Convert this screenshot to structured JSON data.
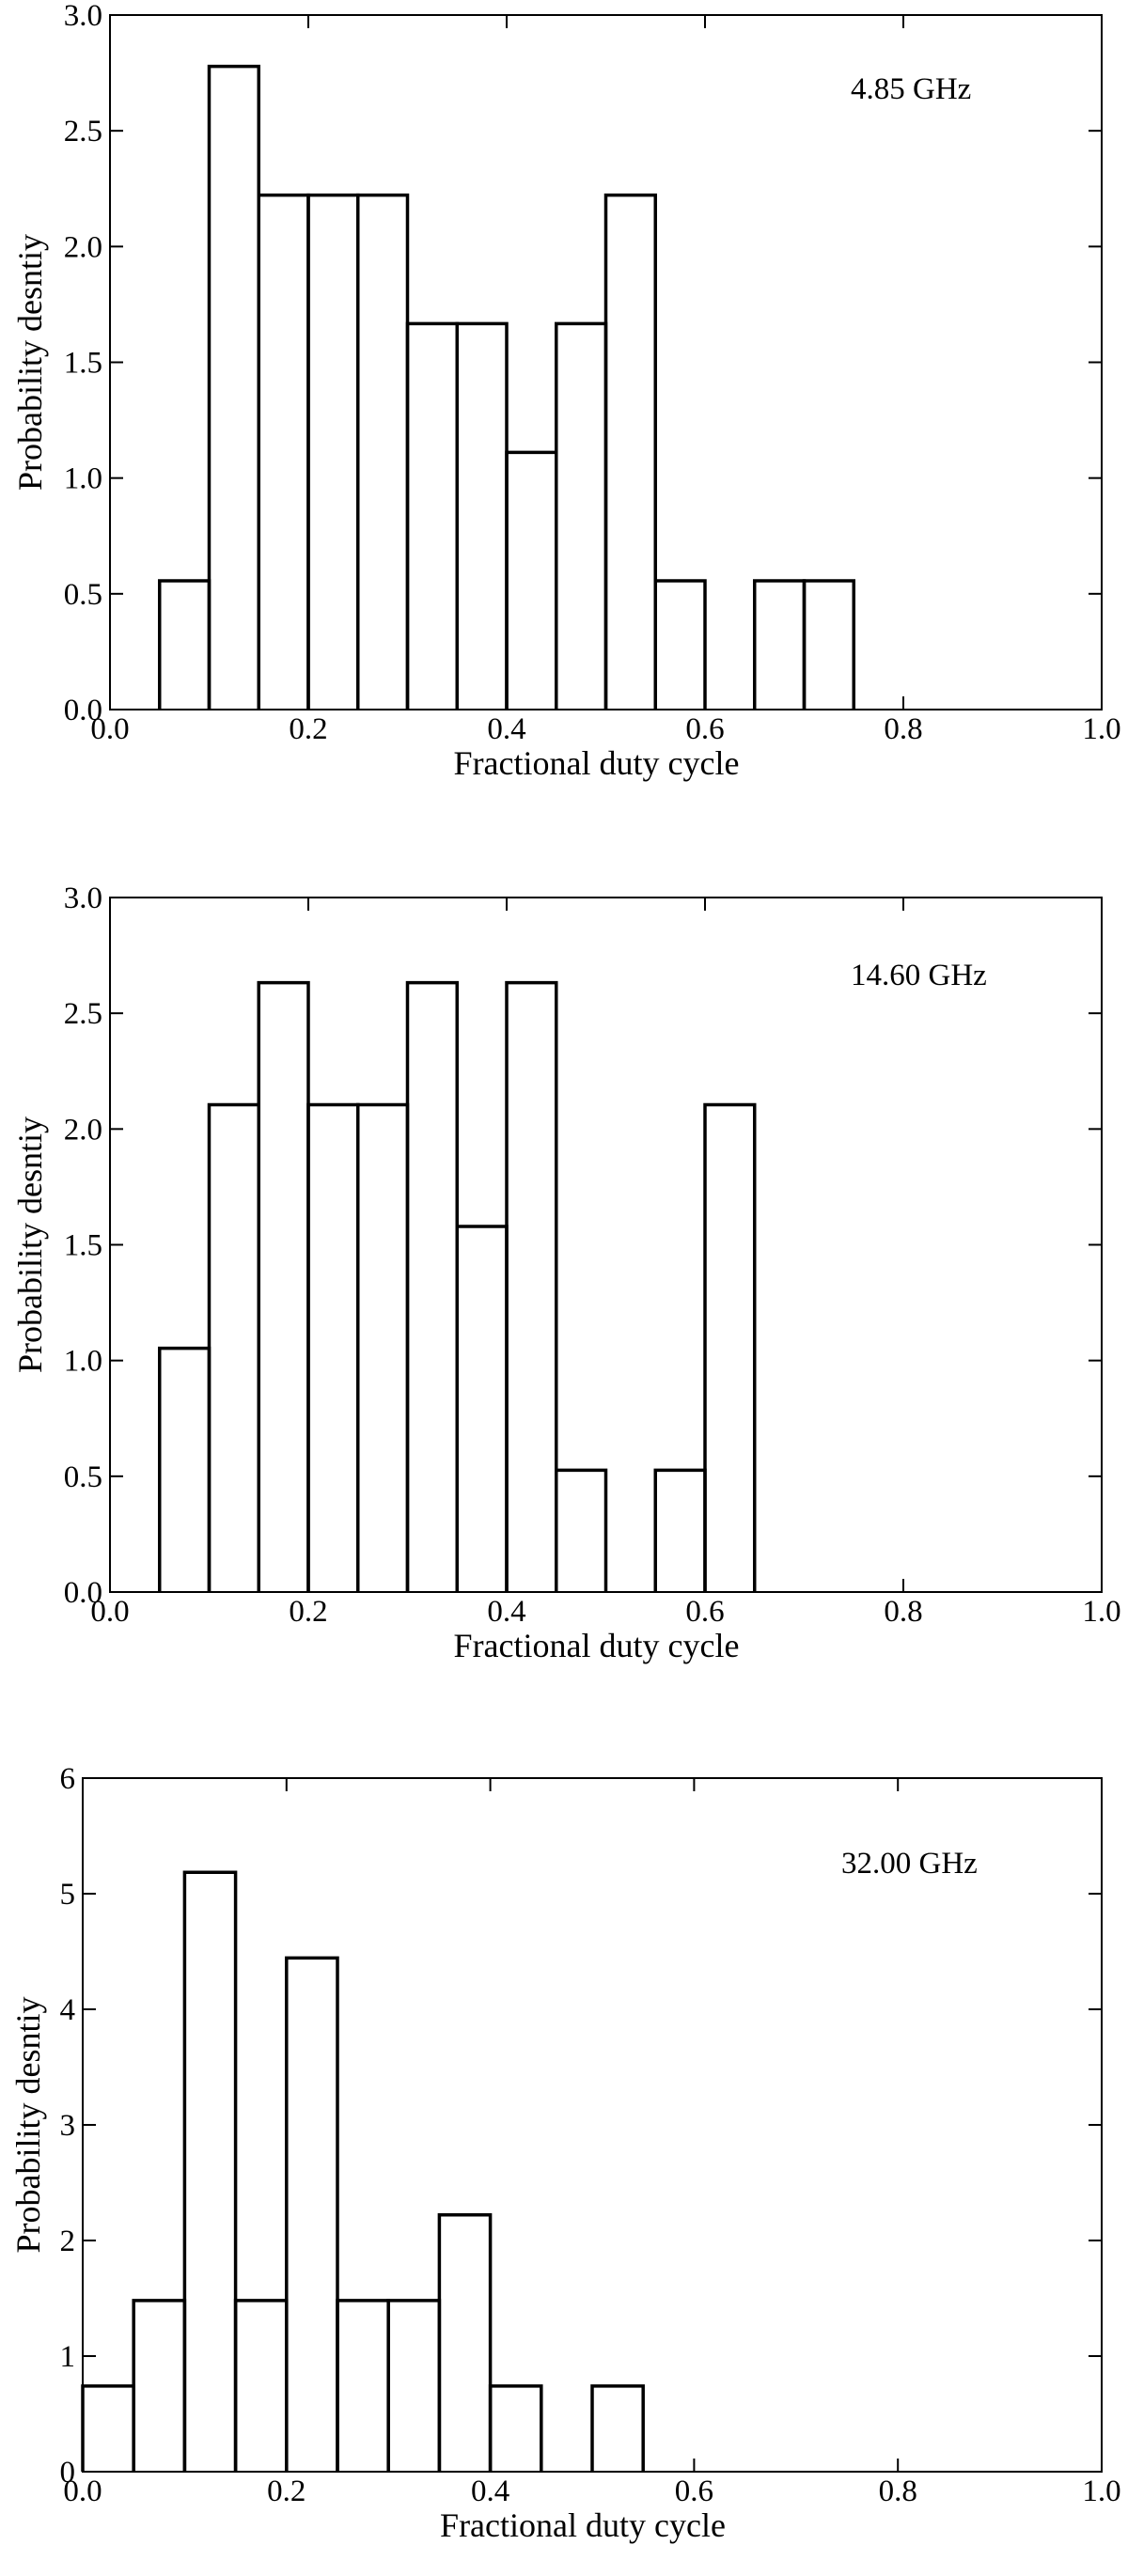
{
  "chart_data": [
    {
      "type": "histogram",
      "annotation": "4.85 GHz",
      "xlabel": "Fractional duty cycle",
      "ylabel": "Probability desntiy",
      "xlim": [
        0.0,
        1.0
      ],
      "ylim": [
        0.0,
        3.0
      ],
      "xticks": [
        "0.0",
        "0.2",
        "0.4",
        "0.6",
        "0.8",
        "1.0"
      ],
      "yticks": [
        "0.0",
        "0.5",
        "1.0",
        "1.5",
        "2.0",
        "2.5",
        "3.0"
      ],
      "bin_edges": [
        0.0,
        0.05,
        0.1,
        0.15,
        0.2,
        0.25,
        0.3,
        0.35,
        0.4,
        0.45,
        0.5,
        0.55,
        0.6,
        0.65,
        0.7,
        0.75,
        0.8,
        0.85,
        0.9,
        0.95,
        1.0
      ],
      "values": [
        0.0,
        0.556,
        2.778,
        2.222,
        2.222,
        2.222,
        1.667,
        1.667,
        1.111,
        1.667,
        2.222,
        0.556,
        0.0,
        0.556,
        0.556,
        0.0,
        0.0,
        0.0,
        0.0,
        0.0
      ]
    },
    {
      "type": "histogram",
      "annotation": "14.60 GHz",
      "xlabel": "Fractional duty cycle",
      "ylabel": "Probability desntiy",
      "xlim": [
        0.0,
        1.0
      ],
      "ylim": [
        0.0,
        3.0
      ],
      "xticks": [
        "0.0",
        "0.2",
        "0.4",
        "0.6",
        "0.8",
        "1.0"
      ],
      "yticks": [
        "0.0",
        "0.5",
        "1.0",
        "1.5",
        "2.0",
        "2.5",
        "3.0"
      ],
      "bin_edges": [
        0.0,
        0.05,
        0.1,
        0.15,
        0.2,
        0.25,
        0.3,
        0.35,
        0.4,
        0.45,
        0.5,
        0.55,
        0.6,
        0.65,
        0.7,
        0.75,
        0.8,
        0.85,
        0.9,
        0.95,
        1.0
      ],
      "values": [
        0.0,
        1.053,
        2.105,
        2.632,
        2.105,
        2.105,
        2.632,
        1.579,
        2.632,
        0.526,
        0.0,
        0.526,
        2.105,
        0.0,
        0.0,
        0.0,
        0.0,
        0.0,
        0.0,
        0.0
      ]
    },
    {
      "type": "histogram",
      "annotation": "32.00 GHz",
      "xlabel": "Fractional duty cycle",
      "ylabel": "Probability desntiy",
      "xlim": [
        0.0,
        1.0
      ],
      "ylim": [
        0,
        6
      ],
      "xticks": [
        "0.0",
        "0.2",
        "0.4",
        "0.6",
        "0.8",
        "1.0"
      ],
      "yticks": [
        "0",
        "1",
        "2",
        "3",
        "4",
        "5",
        "6"
      ],
      "bin_edges": [
        0.0,
        0.05,
        0.1,
        0.15,
        0.2,
        0.25,
        0.3,
        0.35,
        0.4,
        0.45,
        0.5,
        0.55,
        0.6,
        0.65,
        0.7,
        0.75,
        0.8,
        0.85,
        0.9,
        0.95,
        1.0
      ],
      "values": [
        0.741,
        1.481,
        5.185,
        1.481,
        4.444,
        1.481,
        1.481,
        2.222,
        0.741,
        0.0,
        0.741,
        0.0,
        0.0,
        0.0,
        0.0,
        0.0,
        0.0,
        0.0,
        0.0,
        0.0
      ]
    }
  ]
}
